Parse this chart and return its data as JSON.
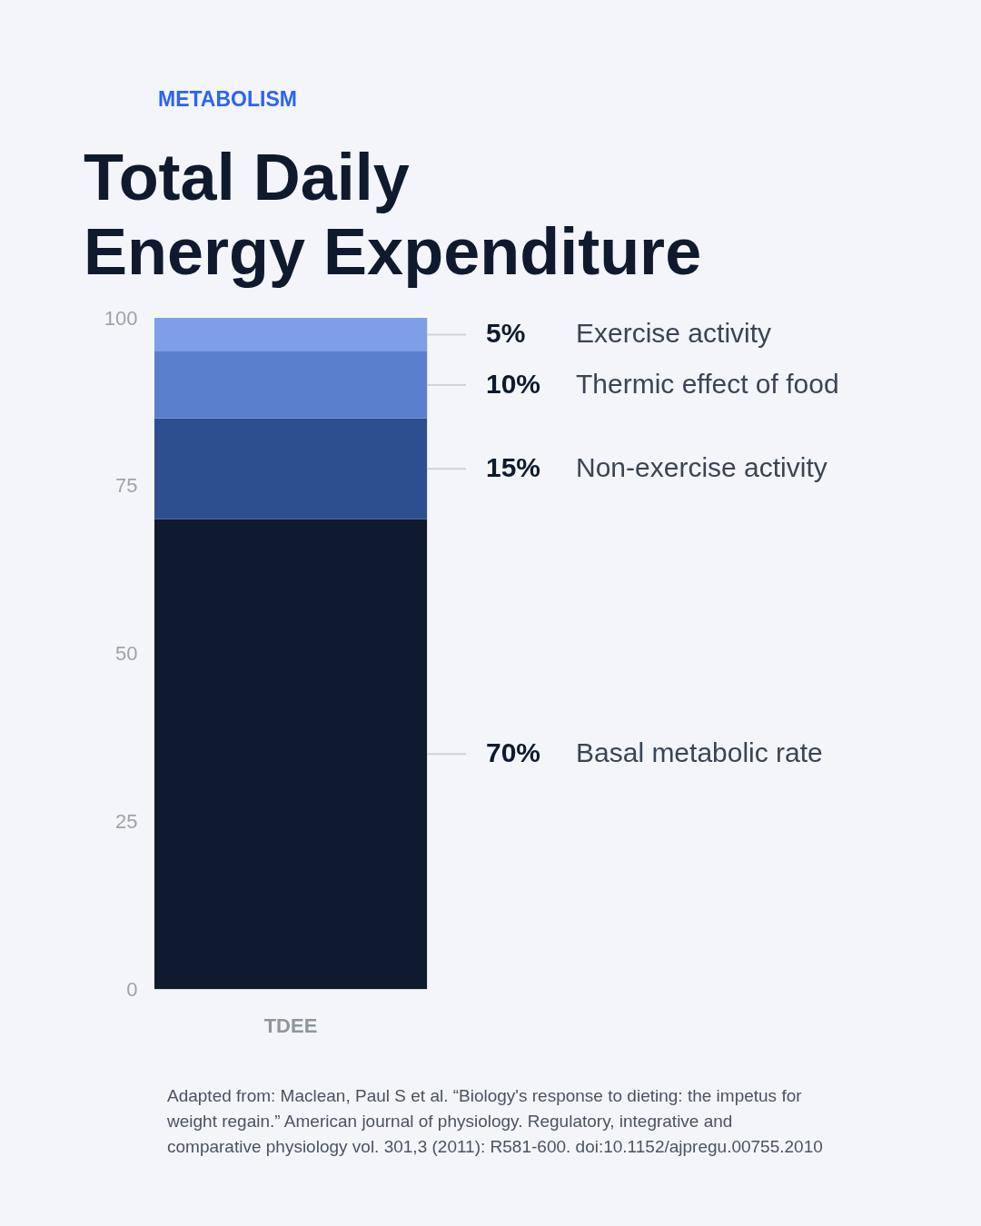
{
  "chart_data": {
    "type": "bar",
    "subtitle": "METABOLISM",
    "title": "Total Daily Energy Expenditure",
    "categories": [
      "TDEE"
    ],
    "stacked": true,
    "series": [
      {
        "name": "Basal metabolic rate",
        "color": "#0f1a2e",
        "values": [
          70
        ],
        "value_labels": [
          "70%"
        ]
      },
      {
        "name": "Non-exercise activity",
        "color": "#2e4f8f",
        "values": [
          15
        ],
        "value_labels": [
          "15%"
        ]
      },
      {
        "name": "Thermic effect of food",
        "color": "#5a7fcc",
        "values": [
          10
        ],
        "value_labels": [
          "10%"
        ]
      },
      {
        "name": "Exercise activity",
        "color": "#7e9fe7",
        "values": [
          5
        ],
        "value_labels": [
          "5%"
        ]
      }
    ],
    "ylim": [
      0,
      100
    ],
    "yticks": [
      0,
      25,
      50,
      75,
      100
    ],
    "annotations": [
      "Adapted from: Maclean, Paul S et al. “Biology's response to dieting: the impetus for weight regain.” American journal of physiology. Regulatory, integrative and comparative physiology vol. 301,3 (2011): R581-600. doi:10.1152/ajpregu.00755.2010"
    ]
  }
}
